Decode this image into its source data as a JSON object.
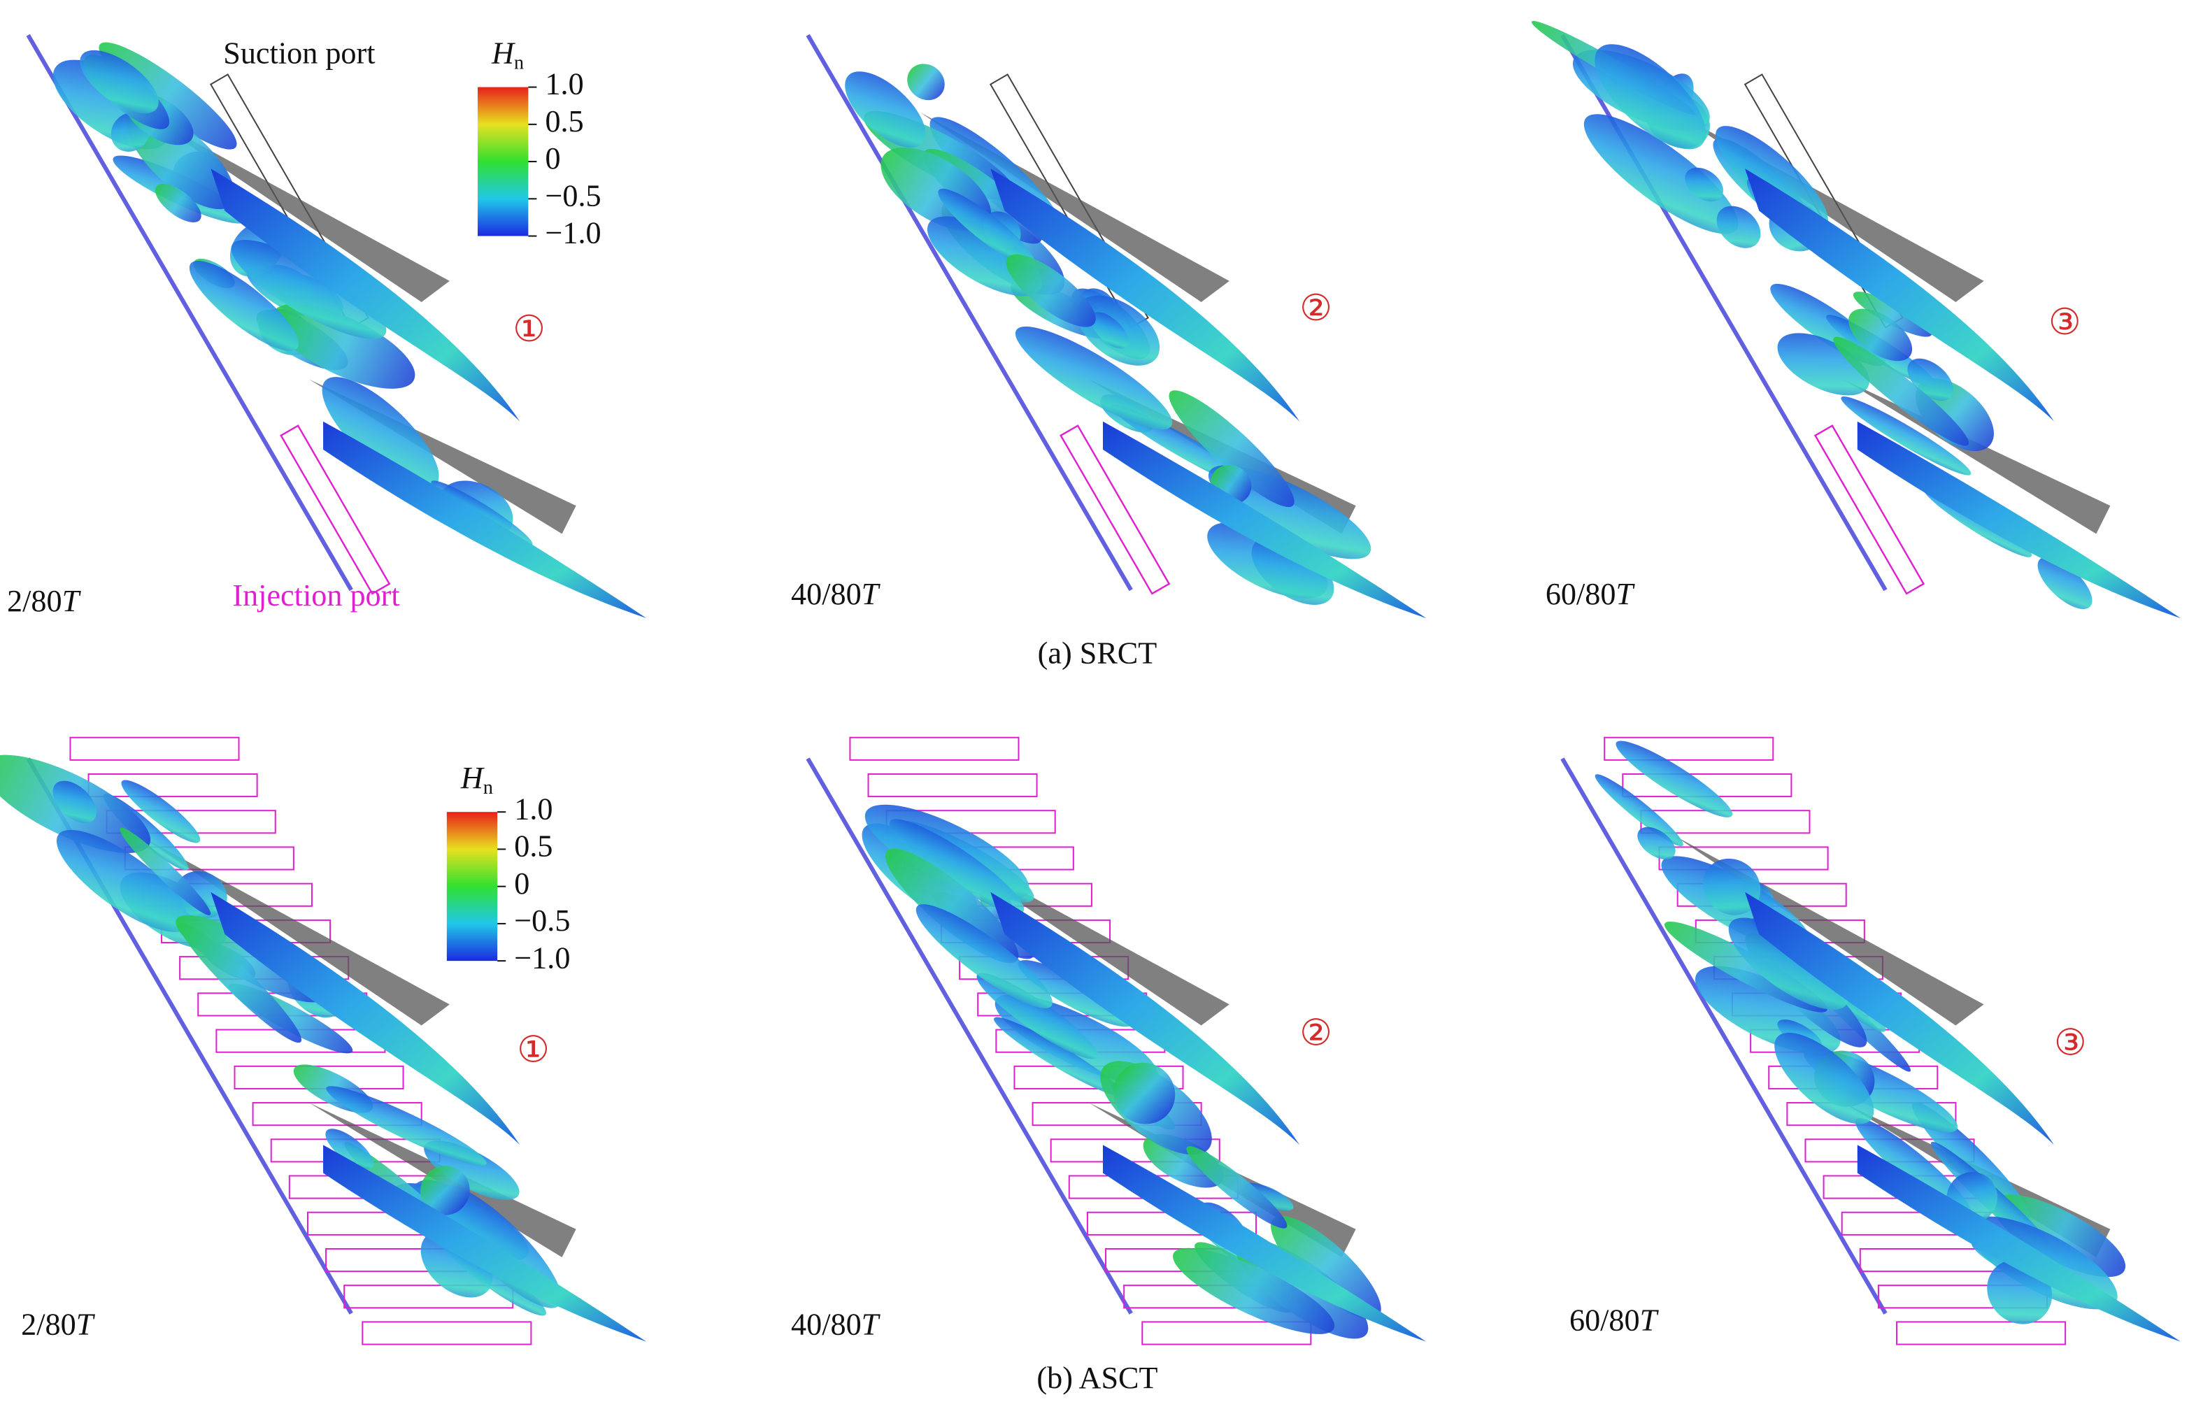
{
  "annotations": {
    "suction": "Suction port",
    "injection": "Injection port"
  },
  "colorbar": {
    "symbol": "H",
    "subscript": "n",
    "ticks": [
      "1.0",
      "0.5",
      "0",
      "−0.5",
      "−1.0"
    ]
  },
  "rows": [
    {
      "caption": "(a) SRCT",
      "panels": [
        {
          "time": "2/80",
          "unit": "T",
          "marker": "①"
        },
        {
          "time": "40/80",
          "unit": "T",
          "marker": "②"
        },
        {
          "time": "60/80",
          "unit": "T",
          "marker": "③"
        }
      ]
    },
    {
      "caption": "(b) ASCT",
      "panels": [
        {
          "time": "2/80",
          "unit": "T",
          "marker": "①"
        },
        {
          "time": "40/80",
          "unit": "T",
          "marker": "②"
        },
        {
          "time": "60/80",
          "unit": "T",
          "marker": "③"
        }
      ]
    }
  ]
}
